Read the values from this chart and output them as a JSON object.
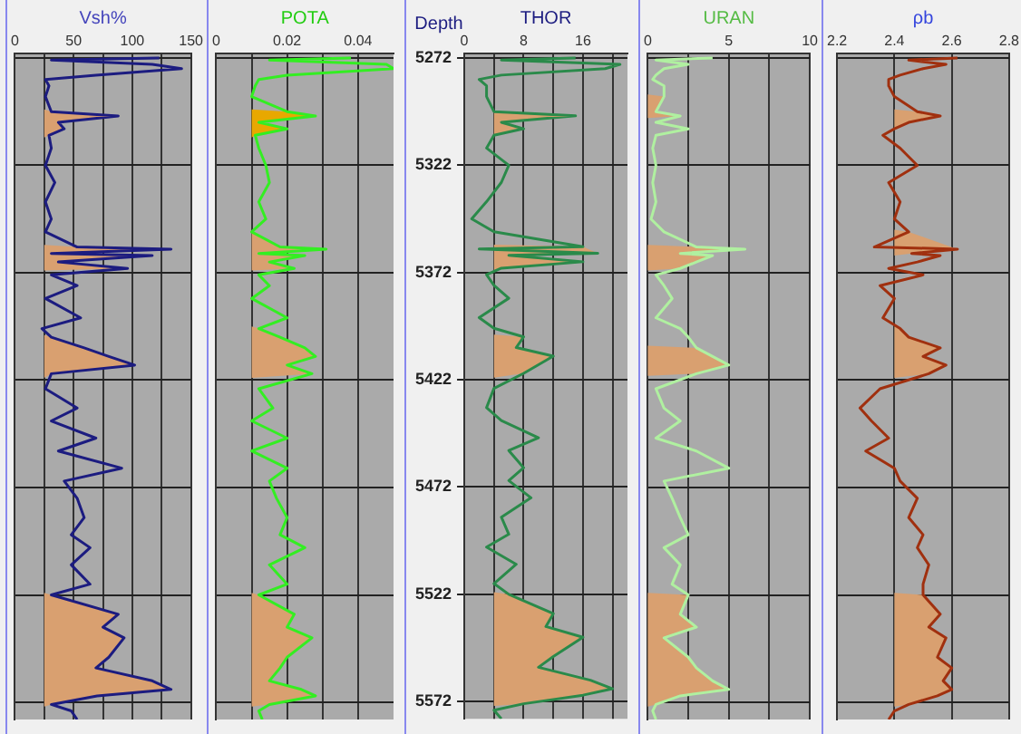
{
  "chart_data": [
    {
      "type": "line",
      "xlabel": "Vsh%",
      "xlim": [
        0,
        150
      ],
      "xticks": [
        0,
        {
          "value": 25,
          "label": null
        },
        50,
        {
          "value": 75,
          "label": null
        },
        100,
        {
          "value": 125,
          "label": null
        },
        150
      ],
      "ylim": [
        5580,
        5270
      ],
      "yticks": [
        5272,
        5322,
        5372,
        5422,
        5472,
        5522,
        5572
      ],
      "grid": true,
      "tick_labels": "x",
      "legend": false,
      "marker": "none",
      "series": [
        {
          "type": "area",
          "color": "#d9a070",
          "x": [
            25,
            31,
            88,
            37,
            42,
            29,
            25
          ],
          "values": [
            5296,
            5297,
            5299,
            5302,
            5305,
            5308,
            5309
          ]
        },
        {
          "type": "area",
          "color": "#d9a070",
          "x": [
            25,
            53,
            133,
            31,
            117,
            37,
            96,
            25
          ],
          "values": [
            5359,
            5360,
            5361,
            5363,
            5364,
            5367,
            5370,
            5371
          ]
        },
        {
          "type": "area",
          "color": "#d9a070",
          "x": [
            25,
            31,
            59,
            80,
            102,
            31,
            25
          ],
          "values": [
            5401,
            5402,
            5407,
            5411,
            5415,
            5419,
            5421
          ]
        },
        {
          "type": "area",
          "color": "#d9a070",
          "x": [
            25,
            31,
            88,
            75,
            93,
            80,
            69,
            117,
            133,
            70,
            31,
            25
          ],
          "values": [
            5521,
            5522,
            5531,
            5537,
            5542,
            5551,
            5556,
            5562,
            5566,
            5569,
            5573,
            5574
          ]
        },
        {
          "color": "#1c1c80",
          "x": [
            123,
            31,
            117,
            142,
            69,
            26,
            29,
            26,
            31,
            88,
            37,
            42,
            29,
            31,
            26,
            34,
            26,
            31,
            26,
            53,
            133,
            31,
            117,
            37,
            96,
            31,
            53,
            26,
            56,
            23,
            31,
            59,
            80,
            102,
            31,
            26,
            53,
            31,
            69,
            37,
            91,
            42,
            53,
            59,
            48,
            64,
            48,
            64,
            31,
            88,
            75,
            93,
            80,
            69,
            117,
            133,
            70,
            31,
            48,
            53
          ],
          "values": [
            5272,
            5273,
            5275,
            5277,
            5280,
            5282,
            5285,
            5290,
            5297,
            5299,
            5302,
            5305,
            5308,
            5314,
            5322,
            5330,
            5339,
            5347,
            5353,
            5360,
            5361,
            5363,
            5364,
            5367,
            5370,
            5373,
            5378,
            5384,
            5393,
            5398,
            5402,
            5407,
            5411,
            5415,
            5419,
            5426,
            5435,
            5441,
            5449,
            5455,
            5463,
            5469,
            5477,
            5486,
            5494,
            5500,
            5508,
            5517,
            5522,
            5531,
            5537,
            5542,
            5551,
            5556,
            5562,
            5566,
            5569,
            5573,
            5576,
            5580
          ]
        }
      ]
    },
    {
      "type": "line",
      "xlabel": "POTA",
      "xlim": [
        0,
        0.05
      ],
      "xticks": [
        0,
        {
          "value": 0.01,
          "label": null
        },
        0.02,
        {
          "value": 0.03,
          "label": null
        },
        0.04
      ],
      "ylim": [
        5580,
        5270
      ],
      "yticks": [
        5272,
        5322,
        5372,
        5422,
        5472,
        5522,
        5572
      ],
      "grid": true,
      "tick_labels": "x",
      "legend": false,
      "marker": "none",
      "series": [
        {
          "type": "area",
          "color": "#e8a800",
          "x": [
            0.01,
            0.02,
            0.028,
            0.012,
            0.02,
            0.011,
            0.01
          ],
          "values": [
            5296,
            5297,
            5299,
            5302,
            5305,
            5308,
            5309
          ]
        },
        {
          "type": "area",
          "color": "#d9a070",
          "x": [
            0.01,
            0.018,
            0.031,
            0.012,
            0.025,
            0.015,
            0.022,
            0.01
          ],
          "values": [
            5353,
            5360,
            5361,
            5363,
            5364,
            5367,
            5370,
            5371
          ]
        },
        {
          "type": "area",
          "color": "#d9a070",
          "x": [
            0.01,
            0.012,
            0.018,
            0.025,
            0.028,
            0.02,
            0.027,
            0.01
          ],
          "values": [
            5397,
            5398,
            5402,
            5407,
            5411,
            5415,
            5419,
            5421
          ]
        },
        {
          "type": "area",
          "color": "#d9a070",
          "x": [
            0.01,
            0.012,
            0.022,
            0.02,
            0.027,
            0.02,
            0.018,
            0.015,
            0.024,
            0.028,
            0.015,
            0.01
          ],
          "values": [
            5521,
            5522,
            5531,
            5537,
            5542,
            5551,
            5556,
            5562,
            5566,
            5569,
            5573,
            5574
          ]
        },
        {
          "color": "#33ee22",
          "x": [
            0.038,
            0.015,
            0.048,
            0.05,
            0.02,
            0.012,
            0.011,
            0.01,
            0.02,
            0.028,
            0.012,
            0.02,
            0.011,
            0.012,
            0.014,
            0.015,
            0.012,
            0.014,
            0.01,
            0.018,
            0.031,
            0.012,
            0.025,
            0.015,
            0.022,
            0.012,
            0.015,
            0.01,
            0.02,
            0.012,
            0.018,
            0.025,
            0.028,
            0.02,
            0.027,
            0.012,
            0.016,
            0.01,
            0.02,
            0.01,
            0.02,
            0.015,
            0.017,
            0.02,
            0.018,
            0.025,
            0.015,
            0.02,
            0.012,
            0.022,
            0.02,
            0.027,
            0.02,
            0.018,
            0.015,
            0.024,
            0.028,
            0.015,
            0.012,
            0.013
          ],
          "values": [
            5272,
            5273,
            5275,
            5277,
            5280,
            5282,
            5285,
            5290,
            5297,
            5299,
            5302,
            5305,
            5308,
            5314,
            5322,
            5330,
            5339,
            5347,
            5353,
            5360,
            5361,
            5363,
            5364,
            5367,
            5370,
            5373,
            5378,
            5384,
            5393,
            5398,
            5402,
            5407,
            5411,
            5415,
            5419,
            5426,
            5435,
            5441,
            5449,
            5455,
            5463,
            5469,
            5477,
            5486,
            5494,
            5500,
            5508,
            5517,
            5522,
            5531,
            5537,
            5542,
            5551,
            5556,
            5562,
            5566,
            5569,
            5573,
            5576,
            5580
          ]
        }
      ]
    },
    {
      "type": "line",
      "xlabel": "THOR",
      "ylabel": "Depth",
      "xlim": [
        0,
        22
      ],
      "xticks": [
        0,
        {
          "value": 4,
          "label": null
        },
        8,
        {
          "value": 12,
          "label": null
        },
        16,
        {
          "value": 20,
          "label": null
        }
      ],
      "ylim": [
        5580,
        5270
      ],
      "yticks": [
        5272,
        5322,
        5372,
        5422,
        5472,
        5522,
        5572
      ],
      "grid": true,
      "legend": false,
      "marker": "none",
      "series": [
        {
          "type": "area",
          "color": "#d9a070",
          "x": [
            4,
            15,
            5,
            8,
            4
          ],
          "values": [
            5297,
            5299,
            5302,
            5305,
            5308
          ]
        },
        {
          "type": "area",
          "color": "#d9a070",
          "x": [
            4,
            16,
            18,
            6,
            16,
            5,
            4
          ],
          "values": [
            5359,
            5360,
            5363,
            5364,
            5367,
            5370,
            5371
          ]
        },
        {
          "type": "area",
          "color": "#d9a070",
          "x": [
            4,
            8,
            7,
            12,
            10,
            8,
            4
          ],
          "values": [
            5401,
            5402,
            5407,
            5411,
            5415,
            5419,
            5421
          ]
        },
        {
          "type": "area",
          "color": "#d9a070",
          "x": [
            4,
            6,
            12,
            11,
            16,
            12,
            10,
            17,
            20,
            16,
            8,
            4
          ],
          "values": [
            5521,
            5522,
            5531,
            5537,
            5542,
            5551,
            5556,
            5562,
            5566,
            5569,
            5573,
            5574
          ]
        },
        {
          "color": "#2a8a4a",
          "x": [
            15,
            5,
            21,
            19,
            5,
            2,
            3,
            3,
            4,
            15,
            5,
            8,
            4,
            3,
            6,
            5,
            3,
            1,
            4,
            16,
            2,
            18,
            6,
            16,
            5,
            3,
            4,
            6,
            2,
            4,
            8,
            7,
            12,
            10,
            8,
            4,
            3,
            5,
            10,
            6,
            8,
            6,
            9,
            5,
            6,
            3,
            7,
            4,
            6,
            12,
            11,
            16,
            12,
            10,
            17,
            20,
            16,
            8,
            4,
            5
          ],
          "values": [
            5272,
            5273,
            5275,
            5277,
            5280,
            5282,
            5285,
            5290,
            5297,
            5299,
            5302,
            5305,
            5308,
            5314,
            5322,
            5330,
            5339,
            5347,
            5353,
            5360,
            5361,
            5363,
            5364,
            5367,
            5370,
            5373,
            5378,
            5384,
            5393,
            5398,
            5402,
            5407,
            5411,
            5415,
            5419,
            5426,
            5435,
            5441,
            5449,
            5455,
            5463,
            5469,
            5477,
            5486,
            5494,
            5500,
            5508,
            5517,
            5522,
            5531,
            5537,
            5542,
            5551,
            5556,
            5562,
            5566,
            5569,
            5573,
            5576,
            5580
          ]
        }
      ]
    },
    {
      "type": "line",
      "xlabel": "URAN",
      "xlim": [
        0,
        10
      ],
      "xticks": [
        0,
        {
          "value": 2.5,
          "label": null
        },
        5,
        {
          "value": 7.5,
          "label": null
        },
        10
      ],
      "ylim": [
        5580,
        5270
      ],
      "yticks": [
        5272,
        5322,
        5372,
        5422,
        5472,
        5522,
        5572
      ],
      "grid": true,
      "tick_labels": "x",
      "legend": false,
      "marker": "none",
      "series": [
        {
          "type": "area",
          "color": "#d9a070",
          "x": [
            0,
            1,
            0.5,
            2,
            0
          ],
          "values": [
            5289,
            5290,
            5297,
            5299,
            5300
          ]
        },
        {
          "type": "area",
          "color": "#d9a070",
          "x": [
            0,
            3,
            6,
            2,
            4,
            3,
            2,
            0
          ],
          "values": [
            5359,
            5360,
            5361,
            5363,
            5364,
            5367,
            5370,
            5371
          ]
        },
        {
          "type": "area",
          "color": "#d9a070",
          "x": [
            0,
            3,
            4,
            5,
            3,
            0
          ],
          "values": [
            5406,
            5407,
            5411,
            5415,
            5419,
            5420
          ]
        },
        {
          "type": "area",
          "color": "#d9a070",
          "x": [
            0,
            2.5,
            2,
            3,
            1,
            2.5,
            3,
            4,
            5,
            2,
            0.5,
            0
          ],
          "values": [
            5521,
            5522,
            5531,
            5537,
            5542,
            5551,
            5556,
            5562,
            5566,
            5569,
            5573,
            5574
          ]
        },
        {
          "color": "#b0f0a0",
          "x": [
            4,
            0.5,
            2.5,
            1,
            0.5,
            0.3,
            1,
            1,
            0.5,
            2,
            0.5,
            2.5,
            0.5,
            0.3,
            0.5,
            0.3,
            0.5,
            0.2,
            1,
            3,
            6,
            2,
            4,
            3,
            2,
            0.5,
            1,
            1.5,
            0.5,
            2,
            2.5,
            3,
            4,
            5,
            3,
            0.5,
            1,
            2,
            0.5,
            3,
            5,
            1,
            1.5,
            2,
            2.5,
            1,
            2,
            1.5,
            2.5,
            2,
            3,
            1,
            2.5,
            3,
            4,
            5,
            2,
            0.5,
            0.3,
            0.5
          ],
          "values": [
            5272,
            5273,
            5275,
            5277,
            5280,
            5282,
            5285,
            5290,
            5297,
            5299,
            5302,
            5305,
            5308,
            5314,
            5322,
            5330,
            5339,
            5347,
            5353,
            5360,
            5361,
            5363,
            5364,
            5367,
            5370,
            5373,
            5378,
            5384,
            5393,
            5398,
            5402,
            5407,
            5411,
            5415,
            5419,
            5426,
            5435,
            5441,
            5449,
            5455,
            5463,
            5469,
            5477,
            5486,
            5494,
            5500,
            5508,
            5517,
            5522,
            5531,
            5537,
            5542,
            5551,
            5556,
            5562,
            5566,
            5569,
            5573,
            5576,
            5580
          ]
        }
      ]
    },
    {
      "type": "line",
      "xlabel": "ρb",
      "xlim": [
        2.2,
        2.8
      ],
      "xticks": [
        2.2,
        2.4,
        2.6,
        2.8
      ],
      "ylim": [
        5580,
        5270
      ],
      "yticks": [
        5272,
        5322,
        5372,
        5422,
        5472,
        5522,
        5572
      ],
      "grid": true,
      "tick_labels": "x",
      "legend": false,
      "marker": "none",
      "series": [
        {
          "type": "area",
          "color": "#d9a070",
          "x": [
            2.4,
            2.48,
            2.56,
            2.45,
            2.4
          ],
          "values": [
            5296,
            5297,
            5299,
            5302,
            5305
          ]
        },
        {
          "type": "area",
          "color": "#d9a070",
          "x": [
            2.4,
            2.45,
            2.62,
            2.46,
            2.4
          ],
          "values": [
            5352,
            5353,
            5361,
            5363,
            5364
          ]
        },
        {
          "type": "area",
          "color": "#d9a070",
          "x": [
            2.4,
            2.42,
            2.45,
            2.56,
            2.5,
            2.58,
            2.52,
            2.4
          ],
          "values": [
            5397,
            5398,
            5402,
            5407,
            5411,
            5415,
            5419,
            5421
          ]
        },
        {
          "type": "area",
          "color": "#d9a070",
          "x": [
            2.4,
            2.5,
            2.56,
            2.52,
            2.58,
            2.55,
            2.6,
            2.57,
            2.6,
            2.55,
            2.45,
            2.4
          ],
          "values": [
            5521,
            5522,
            5531,
            5537,
            5542,
            5551,
            5556,
            5562,
            5566,
            5569,
            5573,
            5574
          ]
        },
        {
          "color": "#a0300f",
          "x": [
            2.62,
            2.45,
            2.58,
            2.5,
            2.42,
            2.38,
            2.38,
            2.4,
            2.48,
            2.56,
            2.45,
            2.4,
            2.36,
            2.42,
            2.48,
            2.38,
            2.42,
            2.4,
            2.45,
            2.33,
            2.62,
            2.46,
            2.56,
            2.48,
            2.38,
            2.5,
            2.35,
            2.4,
            2.36,
            2.42,
            2.45,
            2.56,
            2.5,
            2.58,
            2.52,
            2.35,
            2.28,
            2.32,
            2.38,
            2.3,
            2.4,
            2.42,
            2.48,
            2.45,
            2.5,
            2.48,
            2.52,
            2.5,
            2.5,
            2.56,
            2.52,
            2.58,
            2.55,
            2.6,
            2.57,
            2.6,
            2.55,
            2.45,
            2.4,
            2.38
          ],
          "values": [
            5272,
            5273,
            5275,
            5277,
            5280,
            5282,
            5285,
            5290,
            5297,
            5299,
            5302,
            5305,
            5308,
            5314,
            5322,
            5330,
            5339,
            5347,
            5353,
            5360,
            5361,
            5363,
            5364,
            5367,
            5370,
            5373,
            5378,
            5384,
            5393,
            5398,
            5402,
            5407,
            5411,
            5415,
            5419,
            5426,
            5435,
            5441,
            5449,
            5455,
            5463,
            5469,
            5477,
            5486,
            5494,
            5500,
            5508,
            5517,
            5522,
            5531,
            5537,
            5542,
            5551,
            5556,
            5562,
            5566,
            5569,
            5573,
            5576,
            5580
          ]
        }
      ]
    }
  ]
}
